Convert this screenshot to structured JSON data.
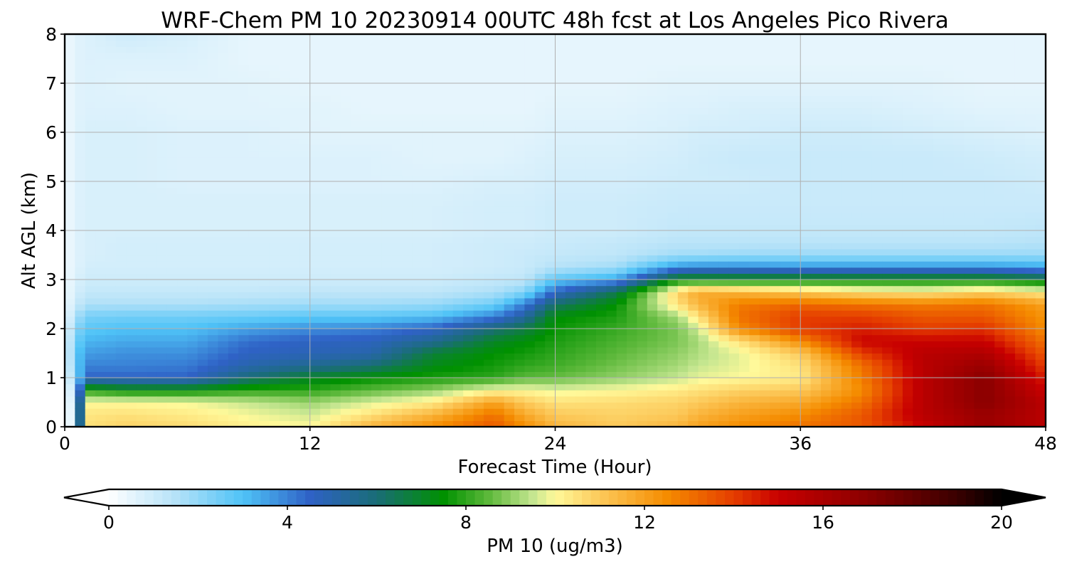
{
  "chart_data": {
    "type": "heatmap",
    "title": "WRF-Chem PM 10  20230914 00UTC 48h fcst at Los Angeles Pico Rivera",
    "xlabel": "Forecast Time (Hour)",
    "ylabel": "Alt AGL (km)",
    "xlim": [
      0,
      48
    ],
    "ylim": [
      0,
      8
    ],
    "xticks": [
      "0",
      "12",
      "24",
      "36",
      "48"
    ],
    "yticks": [
      "0",
      "1",
      "2",
      "3",
      "4",
      "5",
      "6",
      "7",
      "8"
    ],
    "grid": true,
    "colorbar": {
      "label": "PM 10  (ug/m3)",
      "range": [
        0,
        20
      ],
      "ticks": [
        "0",
        "4",
        "8",
        "12",
        "16",
        "20"
      ],
      "extend": "both",
      "stops": [
        {
          "v": 0,
          "c": "#ffffff"
        },
        {
          "v": 1.5,
          "c": "#b5e2f8"
        },
        {
          "v": 3,
          "c": "#4fc3f7"
        },
        {
          "v": 4.5,
          "c": "#2f62c6"
        },
        {
          "v": 6,
          "c": "#1a6d77"
        },
        {
          "v": 7.5,
          "c": "#009100"
        },
        {
          "v": 8.5,
          "c": "#5cb83a"
        },
        {
          "v": 9.5,
          "c": "#c5e690"
        },
        {
          "v": 10,
          "c": "#fff99a"
        },
        {
          "v": 11,
          "c": "#fcc95a"
        },
        {
          "v": 12.5,
          "c": "#f58c00"
        },
        {
          "v": 14,
          "c": "#e53d00"
        },
        {
          "v": 15,
          "c": "#c80000"
        },
        {
          "v": 17,
          "c": "#8a0000"
        },
        {
          "v": 19,
          "c": "#3a0000"
        },
        {
          "v": 20,
          "c": "#000000"
        }
      ]
    },
    "x_hours": [
      0,
      0.5,
      1,
      3,
      6,
      9,
      12,
      15,
      18,
      21,
      22.5,
      24,
      27,
      30,
      31,
      33,
      36,
      39,
      42,
      45,
      48
    ],
    "z_km": [
      0,
      0.25,
      0.5,
      0.75,
      1.0,
      1.25,
      1.5,
      1.75,
      2.0,
      2.25,
      2.5,
      2.75,
      3.0,
      3.25,
      3.5,
      3.75,
      4.0,
      4.5,
      5.0,
      5.5,
      6.0,
      6.5,
      7.0,
      7.5,
      8.0
    ],
    "pm10": [
      [
        0.3,
        0.3,
        0.3,
        0.3,
        0.3,
        0.3,
        0.3,
        0.3,
        0.3,
        0.3,
        0.3,
        0.3,
        0.3,
        0.3,
        0.3,
        0.3,
        0.3,
        0.3,
        0.3,
        0.3,
        0.3,
        0.3,
        0.3,
        0.3,
        0.3
      ],
      [
        0.5,
        0.6,
        0.8,
        1.2,
        2.0,
        2.4,
        2.6,
        2.4,
        2.0,
        1.5,
        1.0,
        0.8,
        0.7,
        0.6,
        0.6,
        0.6,
        0.6,
        0.6,
        0.6,
        0.6,
        0.6,
        0.6,
        0.6,
        0.6,
        0.6
      ],
      [
        10.5,
        10.4,
        10.0,
        8.0,
        4.5,
        4.0,
        3.6,
        3.2,
        2.8,
        2.4,
        1.6,
        1.2,
        1.0,
        0.9,
        0.8,
        0.8,
        0.8,
        0.8,
        0.8,
        0.8,
        0.8,
        0.7,
        0.7,
        0.7,
        0.7
      ],
      [
        10.8,
        10.5,
        10.0,
        7.5,
        4.5,
        4.0,
        3.8,
        3.4,
        3.0,
        2.5,
        1.6,
        1.2,
        1.0,
        0.9,
        0.9,
        0.9,
        0.8,
        0.8,
        0.8,
        0.8,
        0.8,
        0.7,
        0.6,
        0.7,
        1.0
      ],
      [
        10.6,
        10.3,
        9.9,
        7.5,
        4.5,
        4.1,
        3.8,
        3.4,
        3.0,
        2.5,
        1.6,
        1.2,
        1.0,
        0.9,
        0.9,
        0.9,
        0.8,
        0.8,
        0.7,
        0.7,
        0.7,
        0.6,
        0.6,
        0.7,
        0.8
      ],
      [
        10.2,
        9.9,
        9.5,
        8.0,
        6.0,
        5.0,
        4.6,
        4.3,
        3.5,
        2.6,
        1.7,
        1.2,
        1.0,
        0.9,
        0.9,
        0.9,
        0.8,
        0.8,
        0.7,
        0.7,
        0.7,
        0.6,
        0.6,
        0.5,
        0.5
      ],
      [
        10.0,
        9.6,
        9.1,
        8.0,
        7.0,
        5.5,
        4.8,
        4.6,
        3.8,
        2.8,
        1.8,
        1.3,
        1.0,
        0.9,
        0.9,
        0.9,
        0.8,
        0.8,
        0.7,
        0.7,
        0.6,
        0.6,
        0.5,
        0.5,
        0.5
      ],
      [
        11.5,
        10.5,
        9.7,
        8.5,
        7.5,
        6.0,
        5.0,
        4.7,
        4.0,
        2.8,
        1.8,
        1.3,
        1.0,
        0.9,
        0.9,
        0.9,
        0.8,
        0.8,
        0.7,
        0.7,
        0.6,
        0.5,
        0.5,
        0.5,
        0.5
      ],
      [
        12.5,
        11.5,
        10.3,
        9.0,
        7.8,
        7.2,
        6.8,
        5.5,
        4.5,
        3.0,
        1.9,
        1.3,
        1.0,
        0.9,
        0.9,
        0.9,
        0.8,
        0.8,
        0.7,
        0.6,
        0.6,
        0.5,
        0.5,
        0.5,
        0.5
      ],
      [
        13.5,
        13.0,
        12.0,
        10.0,
        8.0,
        7.7,
        7.5,
        7.0,
        6.0,
        4.0,
        2.5,
        1.6,
        1.2,
        1.0,
        1.0,
        1.0,
        0.9,
        0.9,
        0.8,
        0.6,
        0.6,
        0.5,
        0.5,
        0.5,
        0.5
      ],
      [
        12.5,
        11.8,
        11.0,
        10.0,
        8.5,
        8.0,
        7.7,
        7.4,
        6.6,
        5.3,
        4.0,
        2.2,
        1.3,
        1.1,
        1.1,
        1.0,
        0.9,
        0.9,
        0.8,
        0.7,
        0.6,
        0.5,
        0.5,
        0.5,
        0.5
      ],
      [
        11.5,
        11.0,
        10.5,
        9.8,
        8.6,
        8.2,
        8.0,
        7.8,
        7.6,
        7.4,
        6.2,
        4.5,
        2.8,
        1.5,
        1.2,
        1.1,
        1.0,
        1.0,
        0.9,
        0.8,
        0.7,
        0.6,
        0.5,
        0.5,
        0.5
      ],
      [
        11.0,
        10.8,
        10.6,
        10.0,
        9.0,
        8.7,
        8.5,
        8.3,
        8.1,
        7.8,
        7.5,
        6.5,
        3.5,
        1.8,
        1.3,
        1.2,
        1.0,
        1.0,
        0.9,
        0.8,
        0.7,
        0.6,
        0.5,
        0.5,
        0.5
      ],
      [
        11.5,
        11.0,
        10.8,
        10.3,
        9.5,
        9.2,
        9.0,
        8.8,
        8.8,
        9.2,
        10.5,
        10.8,
        7.5,
        3.8,
        1.8,
        1.4,
        1.2,
        1.1,
        1.0,
        0.9,
        0.8,
        0.7,
        0.6,
        0.5,
        0.5
      ],
      [
        12.0,
        11.5,
        11.0,
        10.5,
        9.8,
        9.5,
        9.3,
        9.2,
        9.6,
        10.5,
        11.5,
        11.8,
        7.5,
        4.0,
        1.8,
        1.4,
        1.2,
        1.1,
        1.0,
        1.0,
        0.9,
        0.7,
        0.6,
        0.5,
        0.5
      ],
      [
        12.5,
        12.0,
        11.5,
        10.8,
        10.0,
        9.8,
        9.8,
        10.5,
        12.5,
        13.0,
        12.8,
        11.5,
        7.5,
        4.0,
        1.9,
        1.4,
        1.2,
        1.1,
        1.0,
        1.1,
        0.9,
        0.8,
        0.6,
        0.5,
        0.5
      ],
      [
        13.0,
        12.5,
        11.8,
        11.0,
        10.3,
        10.5,
        11.0,
        12.5,
        14.0,
        14.0,
        13.2,
        11.0,
        7.5,
        3.8,
        1.9,
        1.4,
        1.2,
        1.1,
        1.1,
        1.1,
        1.0,
        0.8,
        0.6,
        0.5,
        0.5
      ],
      [
        13.5,
        13.5,
        13.0,
        12.5,
        12.8,
        13.0,
        14.0,
        15.0,
        14.5,
        14.0,
        13.0,
        10.5,
        7.5,
        3.8,
        1.9,
        1.4,
        1.2,
        1.1,
        1.1,
        1.1,
        1.0,
        0.8,
        0.6,
        0.5,
        0.5
      ],
      [
        15.0,
        15.5,
        15.5,
        15.5,
        15.5,
        15.5,
        15.5,
        15.0,
        14.0,
        13.5,
        12.8,
        10.3,
        7.5,
        3.8,
        1.9,
        1.4,
        1.2,
        1.1,
        1.1,
        1.1,
        0.9,
        0.7,
        0.6,
        0.5,
        0.5
      ],
      [
        16.5,
        16.5,
        17.0,
        17.0,
        17.0,
        16.5,
        15.8,
        15.0,
        14.2,
        13.5,
        13.0,
        10.8,
        7.5,
        3.8,
        1.9,
        1.4,
        1.2,
        1.1,
        1.1,
        1.0,
        0.8,
        0.6,
        0.5,
        0.5,
        0.5
      ],
      [
        15.5,
        15.5,
        15.5,
        15.0,
        14.5,
        14.0,
        13.5,
        13.0,
        12.5,
        12.3,
        12.0,
        10.2,
        7.0,
        3.5,
        1.9,
        1.5,
        1.3,
        1.1,
        1.0,
        0.9,
        0.7,
        0.6,
        0.5,
        0.5,
        0.5
      ]
    ]
  }
}
